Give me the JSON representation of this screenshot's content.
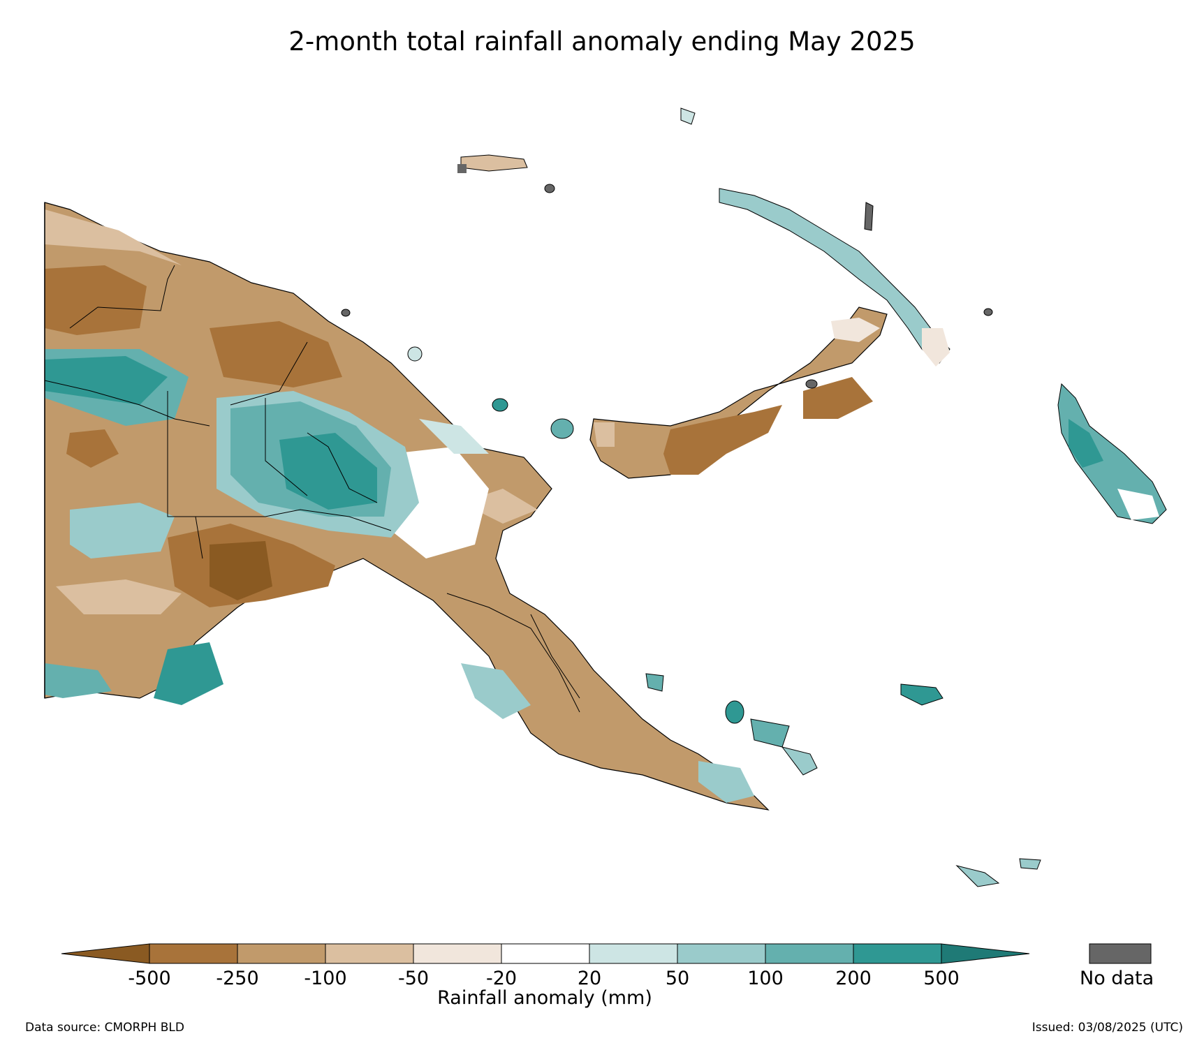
{
  "title": "2-month total rainfall anomaly ending May 2025",
  "colorbar": {
    "label": "Rainfall anomaly (mm)",
    "ticks": [
      "-500",
      "-250",
      "-100",
      "-50",
      "-20",
      "20",
      "50",
      "100",
      "200",
      "500"
    ],
    "colors": {
      "extend_low": "#8a5a22",
      "lt_-500_to_-250": "#a8733a",
      "-250_to_-100": "#c19a6b",
      "-100_to_-50": "#dbbfa0",
      "-50_to_-20": "#f1e6dc",
      "-20_to_20": "#ffffff",
      "20_to_50": "#cde5e4",
      "50_to_100": "#9acbcb",
      "100_to_200": "#64b0ae",
      "200_to_500": "#2f9893",
      "extend_high": "#1f7a76"
    },
    "nodata_label": "No data",
    "nodata_color": "#666666"
  },
  "footer": {
    "source": "Data source: CMORPH BLD",
    "issued": "Issued: 03/08/2025 (UTC)"
  }
}
